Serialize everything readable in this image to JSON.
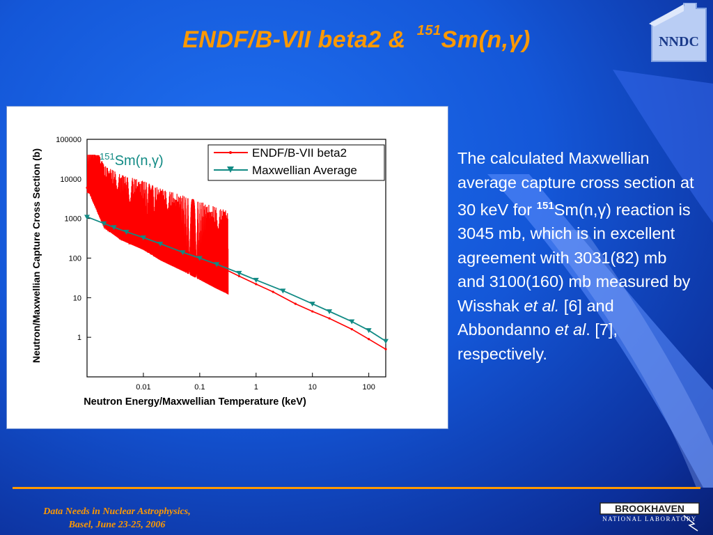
{
  "title": {
    "prefix": "ENDF/B-VII beta2 & ",
    "superscript": "151",
    "suffix": "Sm(n,γ)"
  },
  "logo": {
    "text": "NNDC",
    "icon": "house-icon"
  },
  "description": {
    "line1": "The calculated Maxwellian average capture cross section at 30 keV for ",
    "isotope_sup": "151",
    "reaction": "Sm(n,γ)",
    "line2": " reaction is 3045 mb, which is in excellent agreement with 3031(82) mb and 3100(160) mb measured by Wisshak ",
    "etal1": "et al.",
    "line3": " [6] and Abbondanno ",
    "etal2": "et al",
    "line4": ". [7], respectively."
  },
  "footer": {
    "line1": "Data Needs in Nuclear Astrophysics,",
    "line2": "Basel, June 23-25,  2006"
  },
  "bnl": {
    "name": "BROOKHAVEN",
    "sub": "NATIONAL LABORATORY"
  },
  "colors": {
    "title": "#ff9900",
    "endf": "#ff0000",
    "maxwellian": "#118a84",
    "background": "#1457d8"
  },
  "chart_data": {
    "type": "line",
    "xlabel": "Neutron Energy/Maxwellian Temperature (keV)",
    "ylabel": "Neutron/Maxwellian Capture Cross Section (b)",
    "xscale": "log",
    "yscale": "log",
    "xlim": [
      0.001,
      200
    ],
    "ylim": [
      0.1,
      100000
    ],
    "x_ticks": [
      "0.01",
      "0.1",
      "1",
      "10",
      "100"
    ],
    "y_ticks": [
      "1",
      "10",
      "100",
      "1000",
      "10000",
      "100000"
    ],
    "annotation": {
      "sup": "151",
      "text": "Sm(n,γ)"
    },
    "legend_position": "top-right",
    "series": [
      {
        "name": "ENDF/B-VII beta2",
        "color": "#ff0000",
        "note": "resolved resonances up to ~0.32 keV, smooth above",
        "x": [
          0.001,
          0.002,
          0.004,
          0.01,
          0.02,
          0.05,
          0.1,
          0.2,
          0.3,
          0.5,
          1,
          2,
          5,
          10,
          20,
          50,
          100,
          200
        ],
        "y": [
          6000,
          700,
          400,
          280,
          180,
          120,
          85,
          60,
          50,
          35,
          22,
          14,
          7,
          4.5,
          3,
          1.6,
          0.9,
          0.5
        ]
      },
      {
        "name": "Maxwellian Average",
        "color": "#118a84",
        "x": [
          0.001,
          0.002,
          0.003,
          0.005,
          0.01,
          0.02,
          0.05,
          0.1,
          0.2,
          0.5,
          1,
          3,
          10,
          20,
          50,
          100,
          200
        ],
        "y": [
          1100,
          750,
          600,
          460,
          330,
          230,
          140,
          100,
          70,
          42,
          28,
          15,
          7,
          4.5,
          2.5,
          1.5,
          0.8
        ]
      }
    ]
  }
}
